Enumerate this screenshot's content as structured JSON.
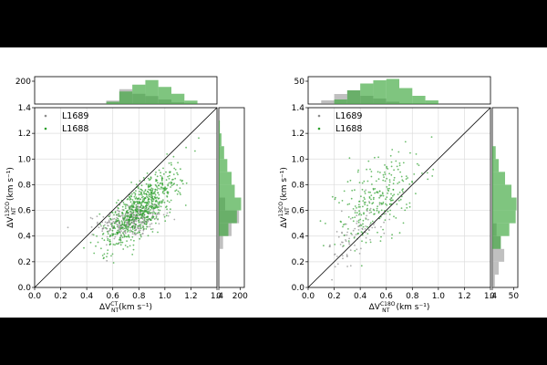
{
  "colors": {
    "L1689": "#8c8c8c",
    "L1688": "#2ca02c",
    "L1688_hist": "#3aa63a",
    "grid": "#dddddd",
    "frame": "#000000",
    "diag": "#000000"
  },
  "chart_data": [
    {
      "type": "scatter",
      "id": "left",
      "xlabel": "ΔV",
      "xlabel_sub": "NT",
      "xlabel_sup": "CT",
      "xlabel_unit": "(km s⁻¹)",
      "ylabel": "ΔV",
      "ylabel_sub": "NT",
      "ylabel_sup": "13CO",
      "ylabel_unit": "(km s⁻¹)",
      "xlim": [
        0.0,
        1.4
      ],
      "ylim": [
        0.0,
        1.4
      ],
      "xticks": [
        "0.0",
        "0.2",
        "0.4",
        "0.6",
        "0.8",
        "1.0",
        "1.2",
        "1.4"
      ],
      "yticks": [
        "0.0",
        "0.2",
        "0.4",
        "0.6",
        "0.8",
        "1.0",
        "1.2",
        "1.4"
      ],
      "grid": true,
      "legend_position": "top-left",
      "legend": [
        "L1689",
        "L1688"
      ],
      "one_to_one_line": true,
      "top_hist_tick": "200",
      "top_hist_max": 240,
      "right_hist_ticks": [
        "0",
        "200"
      ],
      "right_hist_max": 240,
      "series": [
        {
          "name": "L1689",
          "cluster": {
            "cx": 0.74,
            "cy": 0.52,
            "sx": 0.12,
            "sy": 0.07,
            "n": 320,
            "corr": 0.3
          },
          "hist_top": {
            "edges": [
              0.55,
              0.65,
              0.75,
              0.85,
              0.95,
              1.05,
              1.15
            ],
            "counts": [
              30,
              130,
              90,
              70,
              40,
              15
            ]
          },
          "hist_right": {
            "edges": [
              0.3,
              0.4,
              0.5,
              0.6,
              0.7
            ],
            "counts": [
              40,
              120,
              190,
              60
            ]
          }
        },
        {
          "name": "L1688",
          "cluster": {
            "cx": 0.82,
            "cy": 0.62,
            "sx": 0.14,
            "sy": 0.15,
            "n": 700,
            "corr": 0.75
          },
          "hist_top": {
            "edges": [
              0.55,
              0.65,
              0.75,
              0.85,
              0.95,
              1.05,
              1.15,
              1.25
            ],
            "counts": [
              20,
              110,
              170,
              210,
              150,
              90,
              30
            ]
          },
          "hist_right": {
            "edges": [
              0.4,
              0.5,
              0.6,
              0.7,
              0.8,
              0.9,
              1.0,
              1.1,
              1.2,
              1.3
            ],
            "counts": [
              90,
              170,
              210,
              150,
              120,
              80,
              50,
              25,
              10
            ]
          }
        }
      ]
    },
    {
      "type": "scatter",
      "id": "right",
      "xlabel": "ΔV",
      "xlabel_sub": "NT",
      "xlabel_sup": "C18O",
      "xlabel_unit": "(km s⁻¹)",
      "ylabel": "ΔV",
      "ylabel_sub": "NT",
      "ylabel_sup": "13CO",
      "ylabel_unit": "(km s⁻¹)",
      "xlim": [
        0.0,
        1.4
      ],
      "ylim": [
        0.0,
        1.4
      ],
      "xticks": [
        "0.0",
        "0.2",
        "0.4",
        "0.6",
        "0.8",
        "1.0",
        "1.2",
        "1.4"
      ],
      "yticks": [
        "0.0",
        "0.2",
        "0.4",
        "0.6",
        "0.8",
        "1.0",
        "1.2",
        "1.4"
      ],
      "grid": true,
      "legend_position": "top-left",
      "legend": [
        "L1689",
        "L1688"
      ],
      "one_to_one_line": true,
      "top_hist_tick": "50",
      "top_hist_max": 60,
      "right_hist_ticks": [
        "0",
        "50"
      ],
      "right_hist_max": 60,
      "series": [
        {
          "name": "L1689",
          "cluster": {
            "cx": 0.38,
            "cy": 0.42,
            "sx": 0.1,
            "sy": 0.12,
            "n": 90,
            "corr": 0.6
          },
          "hist_top": {
            "edges": [
              0.1,
              0.2,
              0.3,
              0.4,
              0.5,
              0.6,
              0.7
            ],
            "counts": [
              8,
              22,
              30,
              18,
              12,
              5
            ]
          },
          "hist_right": {
            "edges": [
              0.0,
              0.1,
              0.2,
              0.3,
              0.4,
              0.5
            ],
            "counts": [
              6,
              15,
              28,
              20,
              10
            ]
          }
        },
        {
          "name": "L1688",
          "cluster": {
            "cx": 0.52,
            "cy": 0.68,
            "sx": 0.16,
            "sy": 0.18,
            "n": 260,
            "corr": 0.5
          },
          "hist_top": {
            "edges": [
              0.2,
              0.3,
              0.4,
              0.5,
              0.6,
              0.7,
              0.8,
              0.9,
              1.0
            ],
            "counts": [
              10,
              30,
              45,
              52,
              55,
              35,
              18,
              8
            ]
          },
          "hist_right": {
            "edges": [
              0.3,
              0.4,
              0.5,
              0.6,
              0.7,
              0.8,
              0.9,
              1.0,
              1.1
            ],
            "counts": [
              20,
              40,
              55,
              57,
              45,
              30,
              15,
              8
            ]
          }
        }
      ]
    }
  ]
}
